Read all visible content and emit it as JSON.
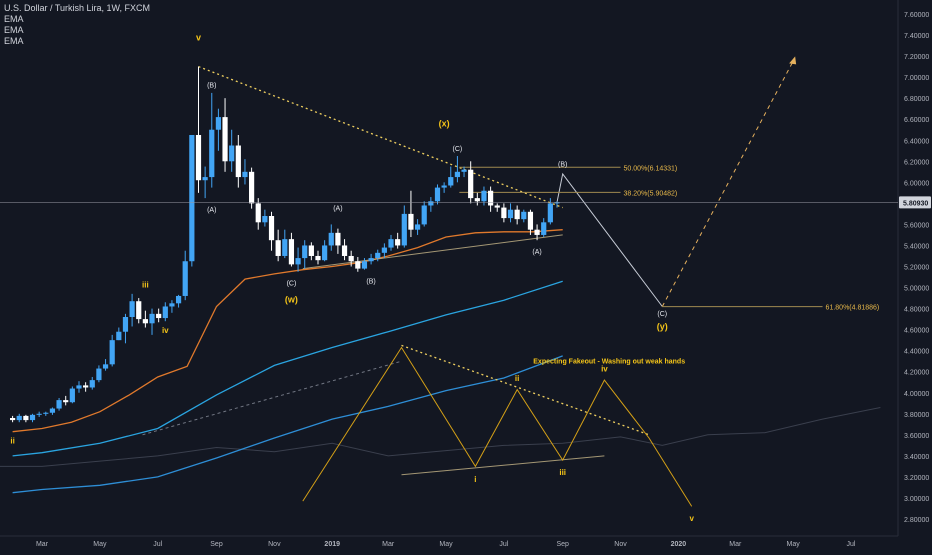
{
  "header": {
    "title": "U.S. Dollar / Turkish Lira, 1W, FXCM",
    "indicators": [
      "EMA",
      "EMA",
      "EMA"
    ]
  },
  "colors": {
    "background": "#131722",
    "bull": "#42a5f5",
    "bear": "#ffffff",
    "wave_label": "#f5c518",
    "trendline": "#f0d060",
    "projection": "#e6b15e",
    "ema_fast": "#e0792c",
    "ema_mid": "#2aa4e0",
    "ema_slow": "#2e8ed6",
    "price_tag": "#d1d4dc",
    "axis_text": "#b2b5be"
  },
  "chart_data": {
    "type": "candlestick",
    "symbol": "USDTRY",
    "interval": "1W",
    "source": "FXCM",
    "ylim": [
      2.7,
      7.7
    ],
    "y_ticks": [
      "2.80000",
      "3.00000",
      "3.20000",
      "3.40000",
      "3.60000",
      "3.80000",
      "4.00000",
      "4.20000",
      "4.40000",
      "4.60000",
      "4.80000",
      "5.00000",
      "5.20000",
      "5.40000",
      "5.60000",
      "5.80000",
      "6.00000",
      "6.20000",
      "6.40000",
      "6.60000",
      "6.80000",
      "7.00000",
      "7.20000",
      "7.40000",
      "7.60000"
    ],
    "x_ticks": [
      {
        "label": "Mar",
        "x": "2018-03-01",
        "bold": false
      },
      {
        "label": "May",
        "x": "2018-05-01",
        "bold": false
      },
      {
        "label": "Jul",
        "x": "2018-07-01",
        "bold": false
      },
      {
        "label": "Sep",
        "x": "2018-09-01",
        "bold": false
      },
      {
        "label": "Nov",
        "x": "2018-11-01",
        "bold": false
      },
      {
        "label": "2019",
        "x": "2019-01-01",
        "bold": true
      },
      {
        "label": "Mar",
        "x": "2019-03-01",
        "bold": false
      },
      {
        "label": "May",
        "x": "2019-05-01",
        "bold": false
      },
      {
        "label": "Jul",
        "x": "2019-07-01",
        "bold": false
      },
      {
        "label": "Sep",
        "x": "2019-09-01",
        "bold": false
      },
      {
        "label": "Nov",
        "x": "2019-11-01",
        "bold": false
      },
      {
        "label": "2020",
        "x": "2020-01-01",
        "bold": true
      },
      {
        "label": "Mar",
        "x": "2020-03-01",
        "bold": false
      },
      {
        "label": "May",
        "x": "2020-05-01",
        "bold": false
      },
      {
        "label": "Jul",
        "x": "2020-07-01",
        "bold": false
      }
    ],
    "last_price": {
      "value": 5.8093,
      "label": "5.80930"
    },
    "ohlc": [
      [
        "2018-01-29",
        3.76,
        3.78,
        3.72,
        3.74
      ],
      [
        "2018-02-05",
        3.74,
        3.8,
        3.72,
        3.78
      ],
      [
        "2018-02-12",
        3.78,
        3.79,
        3.72,
        3.74
      ],
      [
        "2018-02-19",
        3.74,
        3.8,
        3.72,
        3.79
      ],
      [
        "2018-02-26",
        3.79,
        3.82,
        3.77,
        3.8
      ],
      [
        "2018-03-05",
        3.8,
        3.82,
        3.78,
        3.81
      ],
      [
        "2018-03-12",
        3.81,
        3.86,
        3.79,
        3.85
      ],
      [
        "2018-03-19",
        3.85,
        3.95,
        3.83,
        3.93
      ],
      [
        "2018-03-26",
        3.93,
        3.97,
        3.88,
        3.91
      ],
      [
        "2018-04-02",
        3.91,
        4.06,
        3.9,
        4.04
      ],
      [
        "2018-04-09",
        4.04,
        4.11,
        4.0,
        4.07
      ],
      [
        "2018-04-16",
        4.07,
        4.1,
        4.01,
        4.05
      ],
      [
        "2018-04-23",
        4.05,
        4.15,
        4.03,
        4.12
      ],
      [
        "2018-04-30",
        4.12,
        4.26,
        4.1,
        4.23
      ],
      [
        "2018-05-07",
        4.23,
        4.32,
        4.21,
        4.27
      ],
      [
        "2018-05-14",
        4.27,
        4.55,
        4.25,
        4.5
      ],
      [
        "2018-05-21",
        4.5,
        4.62,
        4.5,
        4.58
      ],
      [
        "2018-05-28",
        4.58,
        4.75,
        4.47,
        4.72
      ],
      [
        "2018-06-04",
        4.72,
        4.94,
        4.63,
        4.87
      ],
      [
        "2018-06-11",
        4.87,
        4.9,
        4.66,
        4.7
      ],
      [
        "2018-06-18",
        4.7,
        4.78,
        4.62,
        4.66
      ],
      [
        "2018-06-25",
        4.66,
        4.8,
        4.55,
        4.75
      ],
      [
        "2018-07-02",
        4.75,
        4.8,
        4.67,
        4.71
      ],
      [
        "2018-07-09",
        4.71,
        4.86,
        4.68,
        4.82
      ],
      [
        "2018-07-16",
        4.82,
        4.88,
        4.76,
        4.85
      ],
      [
        "2018-07-23",
        4.85,
        4.93,
        4.81,
        4.92
      ],
      [
        "2018-07-30",
        4.92,
        5.35,
        4.88,
        5.25
      ],
      [
        "2018-08-06",
        5.25,
        6.45,
        5.2,
        6.45
      ],
      [
        "2018-08-13",
        6.45,
        7.1,
        5.9,
        6.02
      ],
      [
        "2018-08-20",
        6.02,
        6.15,
        5.85,
        6.05
      ],
      [
        "2018-08-27",
        6.05,
        6.85,
        5.95,
        6.5
      ],
      [
        "2018-09-03",
        6.5,
        6.7,
        6.3,
        6.62
      ],
      [
        "2018-09-10",
        6.62,
        6.8,
        6.1,
        6.2
      ],
      [
        "2018-09-17",
        6.2,
        6.5,
        6.1,
        6.35
      ],
      [
        "2018-09-24",
        6.35,
        6.45,
        5.95,
        6.05
      ],
      [
        "2018-10-01",
        6.05,
        6.22,
        5.98,
        6.1
      ],
      [
        "2018-10-08",
        6.1,
        6.14,
        5.75,
        5.8
      ],
      [
        "2018-10-15",
        5.8,
        5.85,
        5.55,
        5.62
      ],
      [
        "2018-10-22",
        5.62,
        5.74,
        5.58,
        5.68
      ],
      [
        "2018-10-29",
        5.68,
        5.72,
        5.35,
        5.45
      ],
      [
        "2018-11-05",
        5.45,
        5.55,
        5.25,
        5.3
      ],
      [
        "2018-11-12",
        5.3,
        5.55,
        5.28,
        5.46
      ],
      [
        "2018-11-19",
        5.46,
        5.52,
        5.2,
        5.22
      ],
      [
        "2018-11-26",
        5.22,
        5.38,
        5.15,
        5.28
      ],
      [
        "2018-12-03",
        5.28,
        5.45,
        5.18,
        5.4
      ],
      [
        "2018-12-10",
        5.4,
        5.43,
        5.26,
        5.3
      ],
      [
        "2018-12-17",
        5.3,
        5.35,
        5.22,
        5.26
      ],
      [
        "2018-12-24",
        5.26,
        5.45,
        5.25,
        5.4
      ],
      [
        "2018-12-31",
        5.4,
        5.6,
        5.35,
        5.52
      ],
      [
        "2019-01-07",
        5.52,
        5.56,
        5.32,
        5.4
      ],
      [
        "2019-01-14",
        5.4,
        5.46,
        5.26,
        5.3
      ],
      [
        "2019-01-21",
        5.3,
        5.35,
        5.2,
        5.25
      ],
      [
        "2019-01-28",
        5.25,
        5.29,
        5.15,
        5.18
      ],
      [
        "2019-02-04",
        5.18,
        5.28,
        5.17,
        5.25
      ],
      [
        "2019-02-11",
        5.25,
        5.32,
        5.22,
        5.28
      ],
      [
        "2019-02-18",
        5.28,
        5.36,
        5.25,
        5.33
      ],
      [
        "2019-02-25",
        5.33,
        5.42,
        5.28,
        5.38
      ],
      [
        "2019-03-04",
        5.38,
        5.5,
        5.35,
        5.46
      ],
      [
        "2019-03-11",
        5.46,
        5.52,
        5.37,
        5.4
      ],
      [
        "2019-03-18",
        5.4,
        5.78,
        5.38,
        5.7
      ],
      [
        "2019-03-25",
        5.7,
        5.92,
        5.48,
        5.55
      ],
      [
        "2019-04-01",
        5.55,
        5.65,
        5.5,
        5.6
      ],
      [
        "2019-04-08",
        5.6,
        5.82,
        5.58,
        5.78
      ],
      [
        "2019-04-15",
        5.78,
        5.86,
        5.72,
        5.82
      ],
      [
        "2019-04-22",
        5.82,
        5.98,
        5.79,
        5.95
      ],
      [
        "2019-04-29",
        5.95,
        6.0,
        5.9,
        5.97
      ],
      [
        "2019-05-06",
        5.97,
        6.15,
        5.95,
        6.05
      ],
      [
        "2019-05-13",
        6.05,
        6.25,
        6.0,
        6.1
      ],
      [
        "2019-05-20",
        6.1,
        6.15,
        6.05,
        6.12
      ],
      [
        "2019-05-27",
        6.12,
        6.2,
        5.8,
        5.85
      ],
      [
        "2019-06-03",
        5.85,
        5.9,
        5.78,
        5.82
      ],
      [
        "2019-06-10",
        5.82,
        5.96,
        5.78,
        5.92
      ],
      [
        "2019-06-17",
        5.92,
        5.96,
        5.72,
        5.78
      ],
      [
        "2019-06-24",
        5.78,
        5.8,
        5.72,
        5.76
      ],
      [
        "2019-07-01",
        5.76,
        5.8,
        5.62,
        5.66
      ],
      [
        "2019-07-08",
        5.66,
        5.8,
        5.62,
        5.74
      ],
      [
        "2019-07-15",
        5.74,
        5.78,
        5.6,
        5.65
      ],
      [
        "2019-07-22",
        5.65,
        5.74,
        5.62,
        5.72
      ],
      [
        "2019-07-29",
        5.72,
        5.74,
        5.5,
        5.55
      ],
      [
        "2019-08-05",
        5.55,
        5.6,
        5.45,
        5.5
      ],
      [
        "2019-08-12",
        5.5,
        5.66,
        5.48,
        5.62
      ],
      [
        "2019-08-19",
        5.62,
        5.85,
        5.6,
        5.8
      ],
      [
        "2019-08-26",
        5.8,
        5.82,
        5.76,
        5.81
      ]
    ],
    "ema_fast": [
      [
        "2018-01-29",
        3.63
      ],
      [
        "2018-03-01",
        3.66
      ],
      [
        "2018-04-01",
        3.72
      ],
      [
        "2018-05-01",
        3.82
      ],
      [
        "2018-06-01",
        3.98
      ],
      [
        "2018-07-01",
        4.15
      ],
      [
        "2018-08-01",
        4.25
      ],
      [
        "2018-09-01",
        4.82
      ],
      [
        "2018-10-01",
        5.08
      ],
      [
        "2018-11-01",
        5.13
      ],
      [
        "2018-12-01",
        5.17
      ],
      [
        "2019-01-01",
        5.2
      ],
      [
        "2019-02-01",
        5.24
      ],
      [
        "2019-03-01",
        5.3
      ],
      [
        "2019-04-01",
        5.38
      ],
      [
        "2019-05-01",
        5.48
      ],
      [
        "2019-06-01",
        5.52
      ],
      [
        "2019-07-01",
        5.53
      ],
      [
        "2019-08-01",
        5.53
      ],
      [
        "2019-09-01",
        5.55
      ]
    ],
    "ema_mid": [
      [
        "2018-01-29",
        3.4
      ],
      [
        "2018-03-01",
        3.43
      ],
      [
        "2018-05-01",
        3.52
      ],
      [
        "2018-07-01",
        3.66
      ],
      [
        "2018-09-01",
        3.98
      ],
      [
        "2018-11-01",
        4.26
      ],
      [
        "2019-01-01",
        4.43
      ],
      [
        "2019-03-01",
        4.58
      ],
      [
        "2019-05-01",
        4.74
      ],
      [
        "2019-07-01",
        4.88
      ],
      [
        "2019-09-01",
        5.06
      ]
    ],
    "ema_slow": [
      [
        "2018-01-29",
        3.05
      ],
      [
        "2018-03-01",
        3.08
      ],
      [
        "2018-05-01",
        3.12
      ],
      [
        "2018-07-01",
        3.2
      ],
      [
        "2018-09-01",
        3.38
      ],
      [
        "2018-11-01",
        3.57
      ],
      [
        "2019-01-01",
        3.75
      ],
      [
        "2019-03-01",
        3.87
      ],
      [
        "2019-05-01",
        4.02
      ],
      [
        "2019-07-01",
        4.14
      ],
      [
        "2019-09-01",
        4.35
      ]
    ],
    "ghost_wave": [
      [
        "2018-01-15",
        3.3
      ],
      [
        "2018-03-01",
        3.3
      ],
      [
        "2018-05-01",
        3.35
      ],
      [
        "2018-07-01",
        3.4
      ],
      [
        "2018-09-01",
        3.48
      ],
      [
        "2018-11-01",
        3.44
      ],
      [
        "2019-01-01",
        3.52
      ],
      [
        "2019-03-01",
        3.4
      ],
      [
        "2019-05-01",
        3.45
      ],
      [
        "2019-07-01",
        3.5
      ],
      [
        "2019-09-01",
        3.52
      ],
      [
        "2019-11-01",
        3.58
      ],
      [
        "2019-12-15",
        3.5
      ],
      [
        "2020-02-01",
        3.6
      ],
      [
        "2020-04-01",
        3.62
      ],
      [
        "2020-06-01",
        3.75
      ],
      [
        "2020-08-01",
        3.86
      ]
    ],
    "lines": {
      "main_trendline": [
        [
          "2018-08-13",
          7.1
        ],
        [
          "2019-09-01",
          5.76
        ]
      ],
      "ema_extension": [
        [
          "2018-06-15",
          3.6
        ],
        [
          "2019-03-15",
          4.3
        ]
      ],
      "wave_x_support": [
        [
          "2018-12-01",
          5.18
        ],
        [
          "2019-09-01",
          5.5
        ]
      ],
      "projection_path": [
        [
          "2019-08-26",
          5.81
        ],
        [
          "2019-09-01",
          6.08
        ],
        [
          "2019-12-15",
          4.82
        ]
      ],
      "projection_up": [
        [
          "2019-12-15",
          4.82
        ],
        [
          "2020-05-01",
          7.15
        ]
      ],
      "pattern_path": [
        [
          "2018-12-01",
          2.97
        ],
        [
          "2019-03-15",
          4.43
        ],
        [
          "2019-06-01",
          3.3
        ],
        [
          "2019-07-15",
          4.03
        ],
        [
          "2019-09-01",
          3.36
        ],
        [
          "2019-10-15",
          4.12
        ],
        [
          "2019-12-01",
          3.57
        ],
        [
          "2020-01-15",
          2.92
        ]
      ],
      "pattern_top_line": [
        [
          "2019-03-15",
          4.45
        ],
        [
          "2019-12-01",
          3.6
        ]
      ],
      "pattern_bottom_line": [
        [
          "2019-03-15",
          3.22
        ],
        [
          "2019-10-15",
          3.4
        ]
      ]
    },
    "fib_levels": [
      {
        "label": "50.00%(6.14331)",
        "value": 6.14331,
        "from": "2019-05-15",
        "to": "2019-11-01"
      },
      {
        "label": "38.20%(5.90482)",
        "value": 5.90482,
        "from": "2019-05-15",
        "to": "2019-11-01"
      },
      {
        "label": "61.80%(4.81886)",
        "value": 4.81886,
        "from": "2019-12-15",
        "to": "2020-06-01"
      }
    ],
    "wave_labels": [
      {
        "text": "v",
        "x": "2018-08-13",
        "y": 7.35,
        "color": "gold",
        "size": 9
      },
      {
        "text": "iii",
        "x": "2018-06-18",
        "y": 5.0,
        "color": "gold",
        "size": 8
      },
      {
        "text": "iv",
        "x": "2018-07-09",
        "y": 4.57,
        "color": "gold",
        "size": 8
      },
      {
        "text": "ii",
        "x": "2018-01-29",
        "y": 3.52,
        "color": "gold",
        "size": 8
      },
      {
        "text": "(w)",
        "x": "2018-11-19",
        "y": 4.86,
        "color": "gold",
        "size": 9
      },
      {
        "text": "(x)",
        "x": "2019-04-29",
        "y": 6.53,
        "color": "gold",
        "size": 9
      },
      {
        "text": "(y)",
        "x": "2019-12-15",
        "y": 4.6,
        "color": "gold",
        "size": 9
      },
      {
        "text": "(B)",
        "x": "2018-08-27",
        "y": 6.9,
        "color": "white",
        "size": 7
      },
      {
        "text": "(A)",
        "x": "2018-08-27",
        "y": 5.72,
        "color": "white",
        "size": 7
      },
      {
        "text": "(A)",
        "x": "2019-01-07",
        "y": 5.73,
        "color": "white",
        "size": 7
      },
      {
        "text": "(C)",
        "x": "2018-11-19",
        "y": 5.02,
        "color": "white",
        "size": 7
      },
      {
        "text": "(B)",
        "x": "2019-02-11",
        "y": 5.04,
        "color": "white",
        "size": 7
      },
      {
        "text": "(C)",
        "x": "2019-05-13",
        "y": 6.3,
        "color": "white",
        "size": 7
      },
      {
        "text": "(B)",
        "x": "2019-09-01",
        "y": 6.15,
        "color": "white",
        "size": 7
      },
      {
        "text": "(A)",
        "x": "2019-08-05",
        "y": 5.32,
        "color": "white",
        "size": 7
      },
      {
        "text": "(C)",
        "x": "2019-12-15",
        "y": 4.73,
        "color": "white",
        "size": 7
      },
      {
        "text": "i",
        "x": "2019-06-01",
        "y": 3.15,
        "color": "gold",
        "size": 8
      },
      {
        "text": "ii",
        "x": "2019-07-15",
        "y": 4.11,
        "color": "gold",
        "size": 8
      },
      {
        "text": "iii",
        "x": "2019-09-01",
        "y": 3.22,
        "color": "gold",
        "size": 8
      },
      {
        "text": "iv",
        "x": "2019-10-15",
        "y": 4.2,
        "color": "gold",
        "size": 8
      },
      {
        "text": "v",
        "x": "2020-01-15",
        "y": 2.78,
        "color": "gold",
        "size": 8
      }
    ],
    "annotation": {
      "text": "Expecting Fakeout - Washing out weak hands",
      "x": "2019-08-01",
      "y": 4.28
    }
  }
}
